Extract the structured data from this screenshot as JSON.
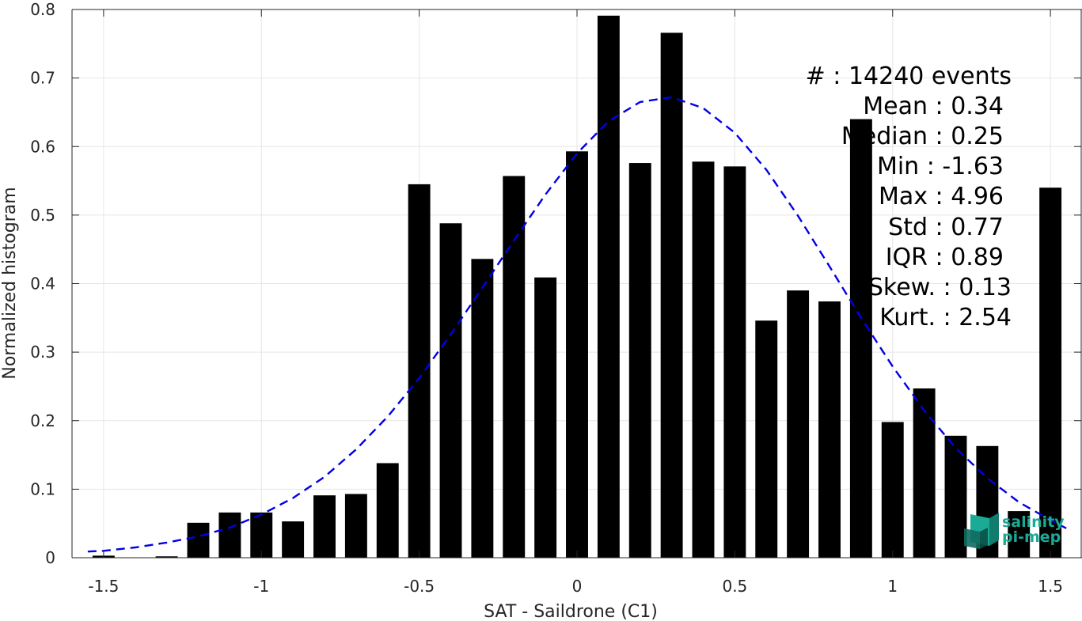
{
  "chart_data": {
    "type": "bar",
    "xlabel": "SAT - Saildrone (C1)",
    "ylabel": "Normalized histogram",
    "xlim": [
      -1.6,
      1.6
    ],
    "ylim": [
      0,
      0.8
    ],
    "xticks": [
      "-1.5",
      "-1",
      "-0.5",
      "0",
      "0.5",
      "1",
      "1.5"
    ],
    "xtick_values": [
      -1.5,
      -1,
      -0.5,
      0,
      0.5,
      1,
      1.5
    ],
    "yticks": [
      "0",
      "0.1",
      "0.2",
      "0.3",
      "0.4",
      "0.5",
      "0.6",
      "0.7",
      "0.8"
    ],
    "ytick_values": [
      0,
      0.1,
      0.2,
      0.3,
      0.4,
      0.5,
      0.6,
      0.7,
      0.8
    ],
    "grid": true,
    "bar_color": "#000000",
    "bar_width": 0.07,
    "bins": [
      -1.5,
      -1.4,
      -1.3,
      -1.2,
      -1.1,
      -1.0,
      -0.9,
      -0.8,
      -0.7,
      -0.6,
      -0.5,
      -0.4,
      -0.3,
      -0.2,
      -0.1,
      0.0,
      0.1,
      0.2,
      0.3,
      0.4,
      0.5,
      0.6,
      0.7,
      0.8,
      0.9,
      1.0,
      1.1,
      1.2,
      1.3,
      1.4,
      1.5
    ],
    "values": [
      0.003,
      0.0,
      0.002,
      0.051,
      0.066,
      0.066,
      0.053,
      0.091,
      0.093,
      0.138,
      0.545,
      0.488,
      0.436,
      0.557,
      0.409,
      0.593,
      0.791,
      0.576,
      0.766,
      0.578,
      0.571,
      0.346,
      0.39,
      0.374,
      0.64,
      0.198,
      0.247,
      0.178,
      0.163,
      0.068,
      0.54
    ],
    "fit": {
      "type": "normal",
      "line_style": "dashed",
      "color": "#0000e6",
      "x": [
        -1.55,
        -1.5,
        -1.4,
        -1.3,
        -1.2,
        -1.1,
        -1.0,
        -0.9,
        -0.8,
        -0.7,
        -0.6,
        -0.5,
        -0.4,
        -0.3,
        -0.2,
        -0.1,
        0.0,
        0.1,
        0.2,
        0.3,
        0.4,
        0.5,
        0.6,
        0.7,
        0.8,
        0.9,
        1.0,
        1.1,
        1.2,
        1.3,
        1.4,
        1.5,
        1.55
      ],
      "y": [
        0.009,
        0.01,
        0.015,
        0.022,
        0.031,
        0.044,
        0.063,
        0.087,
        0.118,
        0.158,
        0.206,
        0.262,
        0.326,
        0.394,
        0.463,
        0.53,
        0.59,
        0.637,
        0.665,
        0.672,
        0.656,
        0.62,
        0.566,
        0.499,
        0.425,
        0.35,
        0.279,
        0.215,
        0.16,
        0.116,
        0.081,
        0.055,
        0.043
      ]
    },
    "annotations": [
      "#  : 14240 events",
      "Mean : 0.34",
      "Median : 0.25",
      "Min : -1.63",
      "Max : 4.96",
      "Std : 0.77",
      "IQR : 0.89",
      "Skew. : 0.13",
      "Kurt. : 2.54"
    ]
  },
  "logo": {
    "line1": "salinity",
    "line2": "pi-mep"
  }
}
